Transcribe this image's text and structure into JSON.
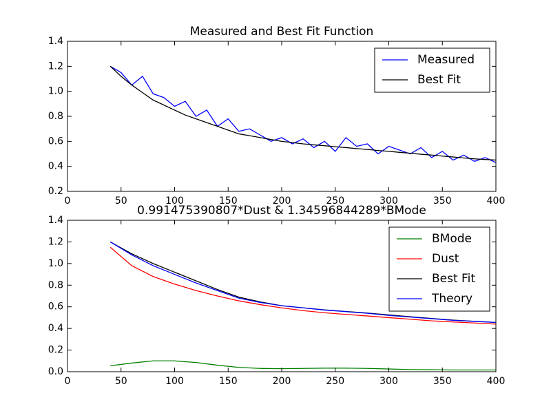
{
  "chart_data": [
    {
      "type": "line",
      "title": "Measured and Best Fit Function",
      "x": [
        40,
        50,
        60,
        70,
        80,
        90,
        100,
        110,
        120,
        130,
        140,
        150,
        160,
        170,
        180,
        190,
        200,
        210,
        220,
        230,
        240,
        250,
        260,
        270,
        280,
        290,
        300,
        310,
        320,
        330,
        340,
        350,
        360,
        370,
        380,
        390,
        400
      ],
      "series": [
        {
          "name": "Measured",
          "color": "#0000ff",
          "values": [
            1.2,
            1.15,
            1.05,
            1.12,
            0.98,
            0.95,
            0.88,
            0.92,
            0.8,
            0.85,
            0.72,
            0.78,
            0.68,
            0.7,
            0.65,
            0.6,
            0.63,
            0.58,
            0.62,
            0.55,
            0.6,
            0.52,
            0.63,
            0.56,
            0.58,
            0.5,
            0.56,
            0.53,
            0.5,
            0.55,
            0.47,
            0.52,
            0.45,
            0.49,
            0.44,
            0.47,
            0.43
          ]
        },
        {
          "name": "Best Fit",
          "color": "#000000",
          "values": [
            1.2,
            1.12,
            1.05,
            0.99,
            0.93,
            0.89,
            0.85,
            0.81,
            0.78,
            0.75,
            0.72,
            0.69,
            0.66,
            0.645,
            0.63,
            0.615,
            0.6,
            0.59,
            0.58,
            0.572,
            0.565,
            0.557,
            0.55,
            0.542,
            0.535,
            0.527,
            0.52,
            0.512,
            0.505,
            0.497,
            0.49,
            0.482,
            0.475,
            0.467,
            0.46,
            0.455,
            0.45
          ]
        }
      ],
      "xlim": [
        0,
        400
      ],
      "xticks": [
        0,
        50,
        100,
        150,
        200,
        250,
        300,
        350,
        400
      ],
      "ylim": [
        0.2,
        1.4
      ],
      "yticks": [
        0.2,
        0.4,
        0.6,
        0.8,
        {
          "value": 1,
          "label": "1.0"
        },
        1.2,
        1.4
      ],
      "legend": "upper right"
    },
    {
      "type": "line",
      "title": "0.991475390807*Dust & 1.34596844289*BMode",
      "x": [
        40,
        60,
        80,
        100,
        120,
        140,
        160,
        180,
        200,
        220,
        240,
        260,
        280,
        300,
        320,
        340,
        360,
        380,
        400
      ],
      "series": [
        {
          "name": "BMode",
          "color": "#008000",
          "values": [
            0.055,
            0.08,
            0.1,
            0.1,
            0.085,
            0.06,
            0.04,
            0.03,
            0.028,
            0.03,
            0.033,
            0.033,
            0.03,
            0.025,
            0.02,
            0.018,
            0.016,
            0.016,
            0.016
          ]
        },
        {
          "name": "Dust",
          "color": "#ff0000",
          "values": [
            1.15,
            0.98,
            0.88,
            0.81,
            0.75,
            0.7,
            0.655,
            0.62,
            0.59,
            0.565,
            0.545,
            0.53,
            0.515,
            0.5,
            0.485,
            0.47,
            0.46,
            0.45,
            0.44
          ]
        },
        {
          "name": "Best Fit",
          "color": "#000000",
          "values": [
            1.2,
            1.09,
            1.0,
            0.92,
            0.84,
            0.76,
            0.69,
            0.645,
            0.61,
            0.59,
            0.572,
            0.557,
            0.542,
            0.525,
            0.508,
            0.492,
            0.477,
            0.466,
            0.456
          ]
        },
        {
          "name": "Theory",
          "color": "#0000ff",
          "values": [
            1.2,
            1.08,
            0.98,
            0.9,
            0.82,
            0.75,
            0.68,
            0.64,
            0.61,
            0.59,
            0.57,
            0.555,
            0.54,
            0.52,
            0.505,
            0.49,
            0.475,
            0.465,
            0.455
          ]
        }
      ],
      "xlim": [
        0,
        400
      ],
      "xticks": [
        0,
        50,
        100,
        150,
        200,
        250,
        300,
        350,
        400
      ],
      "ylim": [
        0,
        1.4
      ],
      "yticks": [
        {
          "value": 0,
          "label": "0.0"
        },
        0.2,
        0.4,
        0.6,
        0.8,
        {
          "value": 1,
          "label": "1.0"
        },
        1.2,
        1.4
      ],
      "legend": "upper right"
    }
  ]
}
